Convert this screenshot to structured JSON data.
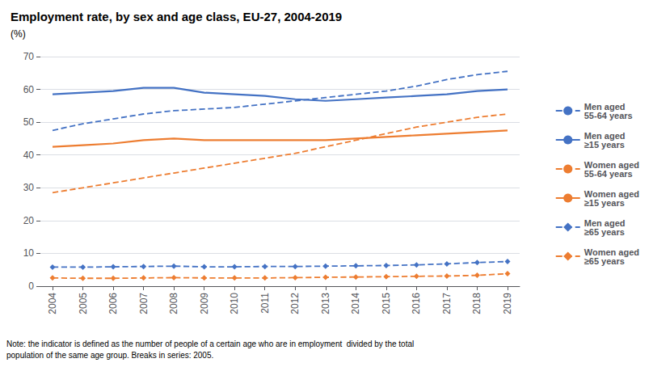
{
  "chart_data": {
    "type": "line",
    "title": "Employment rate, by sex and age class, EU-27, 2004-2019",
    "y_label": "(%)",
    "note": "Note: the indicator is defined as the number of people of a certain age who are in employment  divided by the total\npopulation of the same age group. Breaks in series: 2005.",
    "x": [
      2004,
      2005,
      2006,
      2007,
      2008,
      2009,
      2010,
      2011,
      2012,
      2013,
      2014,
      2015,
      2016,
      2017,
      2018,
      2019
    ],
    "xlim": [
      2003.6,
      2019.4
    ],
    "xticks": [
      2004,
      2005,
      2006,
      2007,
      2008,
      2009,
      2010,
      2011,
      2012,
      2013,
      2014,
      2015,
      2016,
      2017,
      2018,
      2019
    ],
    "ylim": [
      0,
      70
    ],
    "yticks": [
      0,
      10,
      20,
      30,
      40,
      50,
      60,
      70
    ],
    "grid": "y",
    "legend": "right",
    "series": [
      {
        "name": "Men aged\n55-64 years",
        "color": "#4472C4",
        "line_style": "dashed",
        "marker": "none",
        "values": [
          47.5,
          49.5,
          51.0,
          52.5,
          53.5,
          54.0,
          54.5,
          55.5,
          56.5,
          57.5,
          58.5,
          59.5,
          61.0,
          63.0,
          64.5,
          65.5
        ]
      },
      {
        "name": "Men aged\n≥15 years",
        "color": "#4472C4",
        "line_style": "solid",
        "marker": "none",
        "values": [
          58.5,
          59.0,
          59.5,
          60.5,
          60.5,
          59.0,
          58.5,
          58.0,
          57.0,
          56.5,
          57.0,
          57.5,
          58.0,
          58.5,
          59.5,
          60.0
        ]
      },
      {
        "name": "Women aged\n55-64 years",
        "color": "#ED7D31",
        "line_style": "dashed",
        "marker": "none",
        "values": [
          28.5,
          30.0,
          31.5,
          33.0,
          34.5,
          36.0,
          37.5,
          39.0,
          40.5,
          42.5,
          44.5,
          46.5,
          48.5,
          50.0,
          51.5,
          52.5
        ]
      },
      {
        "name": "Women aged\n≥15 years",
        "color": "#ED7D31",
        "line_style": "solid",
        "marker": "none",
        "values": [
          42.5,
          43.0,
          43.5,
          44.5,
          45.0,
          44.5,
          44.5,
          44.5,
          44.5,
          44.5,
          45.0,
          45.5,
          46.0,
          46.5,
          47.0,
          47.5
        ]
      },
      {
        "name": "Men aged\n≥65 years",
        "color": "#4472C4",
        "line_style": "dashed",
        "marker": "diamond",
        "values": [
          5.8,
          5.8,
          5.9,
          6.0,
          6.1,
          5.9,
          5.9,
          6.0,
          6.0,
          6.1,
          6.2,
          6.3,
          6.5,
          6.8,
          7.2,
          7.5
        ]
      },
      {
        "name": "Women aged\n≥65 years",
        "color": "#ED7D31",
        "line_style": "dashed",
        "marker": "diamond",
        "values": [
          2.5,
          2.4,
          2.4,
          2.5,
          2.6,
          2.5,
          2.5,
          2.5,
          2.6,
          2.7,
          2.8,
          2.9,
          3.0,
          3.1,
          3.3,
          3.8
        ]
      }
    ]
  }
}
